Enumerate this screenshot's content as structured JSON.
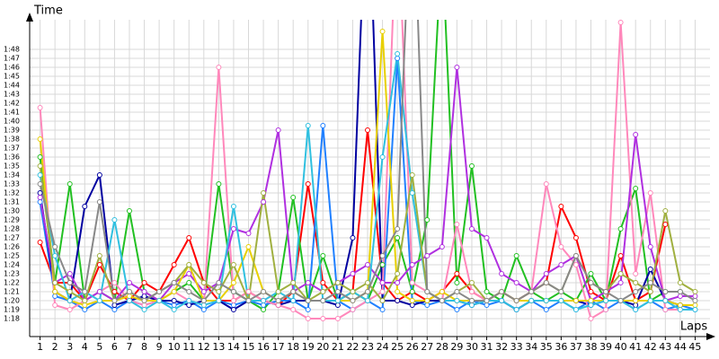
{
  "chart_data": {
    "type": "line",
    "y_label": "Time",
    "x_label": "Laps",
    "x": [
      1,
      2,
      3,
      4,
      5,
      6,
      7,
      8,
      9,
      10,
      11,
      12,
      13,
      14,
      15,
      16,
      17,
      18,
      19,
      20,
      21,
      22,
      23,
      24,
      25,
      26,
      27,
      28,
      29,
      30,
      31,
      32,
      33,
      34,
      35,
      36,
      37,
      38,
      39,
      40,
      41,
      42,
      43,
      44,
      45
    ],
    "xlim": [
      0.3,
      46
    ],
    "xticks": [
      1,
      2,
      3,
      4,
      5,
      6,
      7,
      8,
      9,
      10,
      11,
      12,
      13,
      14,
      15,
      16,
      17,
      18,
      19,
      20,
      21,
      22,
      23,
      24,
      25,
      26,
      27,
      28,
      29,
      30,
      31,
      32,
      33,
      34,
      35,
      36,
      37,
      38,
      39,
      40,
      41,
      42,
      43,
      44,
      45
    ],
    "ylim": [
      76,
      111.3
    ],
    "yticks": [
      {
        "value": 78,
        "label": "1:18"
      },
      {
        "value": 79,
        "label": "1:19"
      },
      {
        "value": 80,
        "label": "1:20"
      },
      {
        "value": 81,
        "label": "1:21"
      },
      {
        "value": 82,
        "label": "1:22"
      },
      {
        "value": 83,
        "label": "1:23"
      },
      {
        "value": 84,
        "label": "1:24"
      },
      {
        "value": 85,
        "label": "1:25"
      },
      {
        "value": 86,
        "label": "1:26"
      },
      {
        "value": 87,
        "label": "1:27"
      },
      {
        "value": 88,
        "label": "1:28"
      },
      {
        "value": 89,
        "label": "1:29"
      },
      {
        "value": 90,
        "label": "1:30"
      },
      {
        "value": 91,
        "label": "1:31"
      },
      {
        "value": 92,
        "label": "1:32"
      },
      {
        "value": 93,
        "label": "1:33"
      },
      {
        "value": 94,
        "label": "1:34"
      },
      {
        "value": 95,
        "label": "1:35"
      },
      {
        "value": 96,
        "label": "1:36"
      },
      {
        "value": 97,
        "label": "1:37"
      },
      {
        "value": 98,
        "label": "1:38"
      },
      {
        "value": 99,
        "label": "1:39"
      },
      {
        "value": 100,
        "label": "1:40"
      },
      {
        "value": 101,
        "label": "1:41"
      },
      {
        "value": 102,
        "label": "1:42"
      },
      {
        "value": 103,
        "label": "1:43"
      },
      {
        "value": 104,
        "label": "1:44"
      },
      {
        "value": 105,
        "label": "1:45"
      },
      {
        "value": 106,
        "label": "1:46"
      },
      {
        "value": 107,
        "label": "1:47"
      },
      {
        "value": 108,
        "label": "1:48"
      }
    ],
    "grid": true,
    "series": [
      {
        "color": "#ff0000",
        "values": [
          86.5,
          82,
          82,
          80,
          84,
          81,
          80,
          82,
          81,
          84,
          87,
          82,
          80,
          80,
          81,
          80,
          79.5,
          81,
          93,
          82,
          80,
          81,
          99,
          82,
          80,
          81,
          80,
          81,
          83,
          81,
          80,
          81,
          80,
          81,
          82,
          90.5,
          87,
          81,
          80,
          85,
          80,
          81,
          88.5,
          null,
          null
        ]
      },
      {
        "color": "#22c022",
        "values": [
          96,
          82,
          93,
          80,
          81,
          80,
          90,
          81,
          80,
          81,
          82,
          80,
          93,
          81,
          80,
          79,
          81,
          91.5,
          80,
          85,
          80,
          81,
          80,
          84,
          87,
          81,
          89,
          120,
          82,
          95,
          81,
          80,
          85,
          81,
          80,
          81,
          80,
          83,
          80,
          88,
          92.5,
          80,
          81,
          81,
          null
        ]
      },
      {
        "color": "#2080ff",
        "values": [
          91,
          80.5,
          80,
          79,
          80,
          79,
          80,
          79.5,
          80,
          79.5,
          80,
          79,
          80,
          79.5,
          80,
          79.5,
          80,
          80,
          79,
          99.5,
          80,
          79,
          80,
          79,
          107,
          80,
          79.5,
          80,
          79,
          80,
          79.5,
          80,
          79,
          80,
          79,
          80,
          79,
          80,
          79,
          80,
          79,
          80,
          79,
          79.5,
          79
        ]
      },
      {
        "color": "#0000a0",
        "values": [
          92,
          81,
          80,
          90.5,
          94,
          79.5,
          80,
          80.5,
          80,
          80,
          79.5,
          80,
          80,
          79,
          80,
          80,
          79.5,
          80,
          80,
          80,
          79.5,
          87,
          130,
          80,
          80,
          79.5,
          80,
          80,
          80,
          79.5,
          80,
          80,
          79,
          80,
          80,
          80,
          80,
          79.5,
          80,
          80,
          79.5,
          83.5,
          80,
          79.5,
          null
        ]
      },
      {
        "color": "#ff88bb",
        "values": [
          101.5,
          79.5,
          79,
          80,
          81,
          82,
          80,
          79.5,
          80,
          81,
          80,
          79.5,
          106,
          80,
          81,
          80,
          79.5,
          79,
          78,
          78,
          78,
          79,
          80,
          81,
          125,
          82,
          81,
          80,
          88.5,
          81,
          80,
          81,
          80,
          81,
          93,
          86,
          84,
          78,
          79,
          111,
          83,
          92,
          79,
          79,
          null
        ]
      },
      {
        "color": "#b030e0",
        "values": [
          91.5,
          82,
          83,
          80,
          81,
          80,
          82,
          81,
          80,
          82,
          83,
          81,
          82,
          88,
          87.5,
          91,
          99,
          81,
          82,
          81,
          82,
          83,
          84,
          82,
          82,
          84,
          85,
          86,
          106,
          88,
          87,
          83,
          82,
          81,
          83,
          84,
          85,
          80,
          81,
          82,
          98.5,
          86,
          80,
          80.5,
          80.5
        ]
      },
      {
        "color": "#e8d000",
        "values": [
          98,
          81,
          80,
          79.5,
          80,
          80,
          80.5,
          80,
          80,
          81,
          84,
          80,
          80,
          82,
          86,
          81,
          80,
          81,
          80,
          80,
          80,
          80,
          81,
          110,
          81,
          80,
          80,
          81,
          80,
          80,
          80,
          81,
          80,
          80,
          80,
          80,
          80,
          80,
          80,
          80,
          80,
          80,
          80,
          79.5,
          79.5
        ]
      },
      {
        "color": "#30c0e0",
        "values": [
          94,
          85,
          80,
          81,
          80,
          89,
          80,
          79,
          80,
          79,
          80,
          79.5,
          80,
          90.5,
          80,
          80,
          81,
          80,
          99.5,
          80,
          80,
          81,
          80,
          96,
          107.5,
          92,
          81,
          80,
          80,
          79.5,
          80,
          80,
          79,
          80,
          80,
          80,
          79,
          79.5,
          80,
          80,
          79,
          80,
          80,
          79,
          79
        ]
      },
      {
        "color": "#a0b040",
        "values": [
          95,
          82,
          81,
          80,
          85,
          80,
          81,
          80,
          81,
          82,
          84,
          82,
          81,
          84,
          80,
          92,
          81,
          82,
          80,
          81,
          82,
          81,
          82,
          80,
          83,
          94,
          81,
          80,
          81,
          82,
          80,
          81,
          80,
          81,
          82,
          81,
          85,
          82,
          81,
          83,
          82,
          81,
          90,
          82,
          81
        ]
      },
      {
        "color": "#888888",
        "values": [
          93,
          86,
          82,
          81,
          91,
          80,
          81,
          80,
          81,
          82,
          81,
          80,
          82,
          81,
          80,
          81,
          80,
          81,
          80,
          80,
          81,
          80,
          81,
          85,
          88,
          130,
          81,
          80,
          81,
          80,
          80,
          81,
          80,
          81,
          82,
          81,
          85,
          82,
          81,
          80,
          81,
          82,
          81,
          81,
          80
        ]
      }
    ]
  }
}
